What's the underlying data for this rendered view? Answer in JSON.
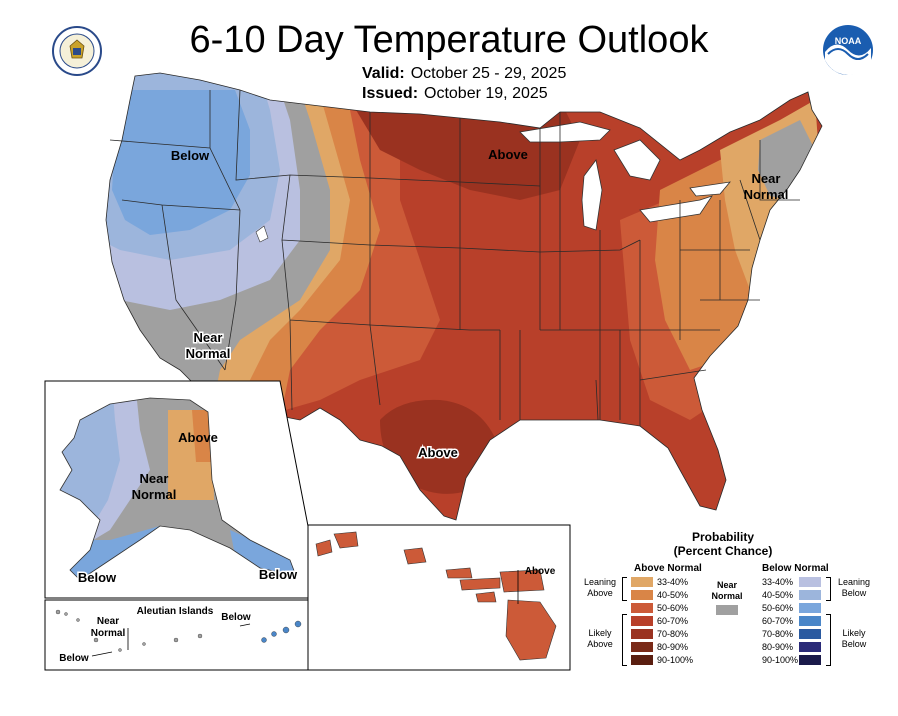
{
  "header": {
    "title": "6-10 Day Temperature Outlook",
    "valid_label": "Valid:",
    "valid_dates": "October 25 - 29, 2025",
    "issued_label": "Issued:",
    "issued_date": "October 19, 2025"
  },
  "logos": {
    "left": "commerce-seal",
    "right": "noaa-logo",
    "right_text": "NOAA"
  },
  "conus_labels": {
    "northwest": "Below",
    "upper_midwest": "Above",
    "northeast_line1": "Near",
    "northeast_line2": "Normal",
    "southwest_line1": "Near",
    "southwest_line2": "Normal",
    "texas": "Above"
  },
  "alaska": {
    "above": "Above",
    "near_line1": "Near",
    "near_line2": "Normal",
    "below_sw": "Below",
    "below_se": "Below"
  },
  "aleutians": {
    "title": "Aleutian Islands",
    "below_east": "Below",
    "near_line1": "Near",
    "near_line2": "Normal",
    "below_west": "Below"
  },
  "hawaii": {
    "label": "Above"
  },
  "legend": {
    "title_line1": "Probability",
    "title_line2": "(Percent Chance)",
    "above_header": "Above Normal",
    "below_header": "Below Normal",
    "near_line1": "Near",
    "near_line2": "Normal",
    "leaning_above_1": "Leaning",
    "leaning_above_2": "Above",
    "likely_above_1": "Likely",
    "likely_above_2": "Above",
    "leaning_below_1": "Leaning",
    "leaning_below_2": "Below",
    "likely_below_1": "Likely",
    "likely_below_2": "Below",
    "above_rows": [
      {
        "range": "33-40%",
        "color": "#e0a766"
      },
      {
        "range": "40-50%",
        "color": "#d98547"
      },
      {
        "range": "50-60%",
        "color": "#cc5a38"
      },
      {
        "range": "60-70%",
        "color": "#b8402a"
      },
      {
        "range": "70-80%",
        "color": "#9a3220"
      },
      {
        "range": "80-90%",
        "color": "#7a2a18"
      },
      {
        "range": "90-100%",
        "color": "#5a1e10"
      }
    ],
    "below_rows": [
      {
        "range": "33-40%",
        "color": "#b9c0e0"
      },
      {
        "range": "40-50%",
        "color": "#9cb5dc"
      },
      {
        "range": "50-60%",
        "color": "#7aa6dc"
      },
      {
        "range": "60-70%",
        "color": "#4a86c8"
      },
      {
        "range": "70-80%",
        "color": "#2a5aa0"
      },
      {
        "range": "80-90%",
        "color": "#2a2a78"
      },
      {
        "range": "90-100%",
        "color": "#1a1a4a"
      }
    ],
    "near_color": "#a0a0a0"
  }
}
